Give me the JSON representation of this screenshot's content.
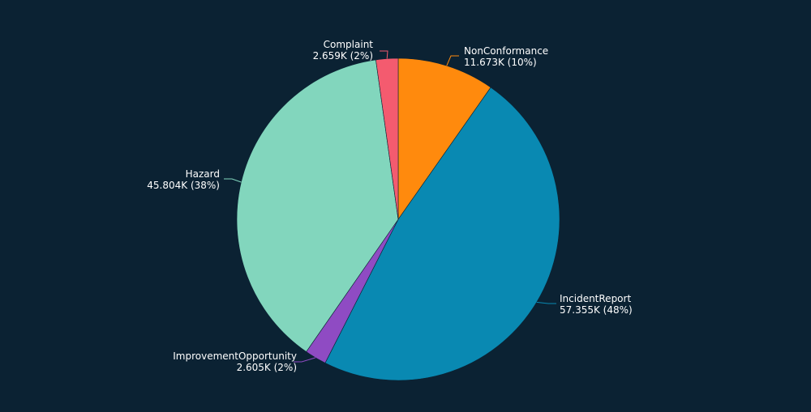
{
  "background_color": "#0b2233",
  "chart_data": {
    "type": "pie",
    "title": "",
    "start_angle_deg": 0,
    "direction": "clockwise",
    "legend": "none",
    "slices": [
      {
        "name": "NonConformance",
        "value": 11673,
        "display": "11.673K (10%)",
        "color": "#ff8a0d"
      },
      {
        "name": "IncidentReport",
        "value": 57355,
        "display": "57.355K (48%)",
        "color": "#0989b2"
      },
      {
        "name": "ImprovementOpportunity",
        "value": 2605,
        "display": "2.605K (2%)",
        "color": "#8f4bc3"
      },
      {
        "name": "Hazard",
        "value": 45804,
        "display": "45.804K (38%)",
        "color": "#82d6bd"
      },
      {
        "name": "Complaint",
        "value": 2659,
        "display": "2.659K (2%)",
        "color": "#f45b6f"
      }
    ]
  }
}
